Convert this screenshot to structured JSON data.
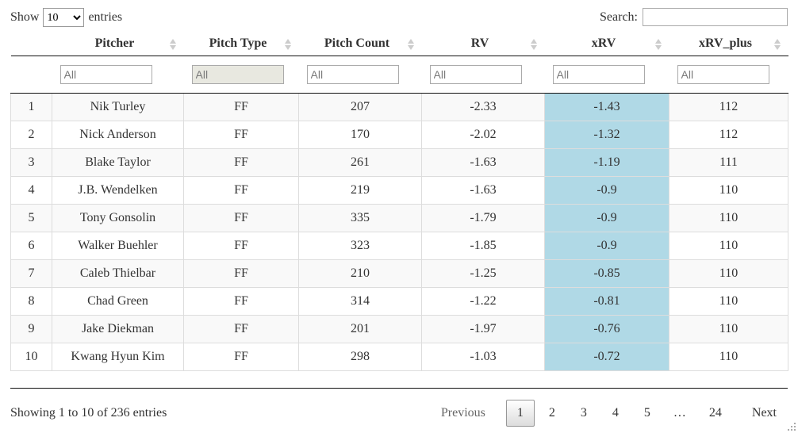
{
  "controls": {
    "show_label": "Show",
    "entries_selected": "10",
    "entries_label": "entries",
    "search_label": "Search:",
    "search_value": ""
  },
  "table": {
    "columns": [
      "Pitcher",
      "Pitch Type",
      "Pitch Count",
      "RV",
      "xRV",
      "xRV_plus"
    ],
    "filters": {
      "placeholder": "All"
    },
    "rows": [
      {
        "num": "1",
        "pitcher": "Nik Turley",
        "pitch_type": "FF",
        "pitch_count": "207",
        "rv": "-2.33",
        "xrv": "-1.43",
        "xrv_plus": "112"
      },
      {
        "num": "2",
        "pitcher": "Nick Anderson",
        "pitch_type": "FF",
        "pitch_count": "170",
        "rv": "-2.02",
        "xrv": "-1.32",
        "xrv_plus": "112"
      },
      {
        "num": "3",
        "pitcher": "Blake Taylor",
        "pitch_type": "FF",
        "pitch_count": "261",
        "rv": "-1.63",
        "xrv": "-1.19",
        "xrv_plus": "111"
      },
      {
        "num": "4",
        "pitcher": "J.B. Wendelken",
        "pitch_type": "FF",
        "pitch_count": "219",
        "rv": "-1.63",
        "xrv": "-0.9",
        "xrv_plus": "110"
      },
      {
        "num": "5",
        "pitcher": "Tony Gonsolin",
        "pitch_type": "FF",
        "pitch_count": "335",
        "rv": "-1.79",
        "xrv": "-0.9",
        "xrv_plus": "110"
      },
      {
        "num": "6",
        "pitcher": "Walker Buehler",
        "pitch_type": "FF",
        "pitch_count": "323",
        "rv": "-1.85",
        "xrv": "-0.9",
        "xrv_plus": "110"
      },
      {
        "num": "7",
        "pitcher": "Caleb Thielbar",
        "pitch_type": "FF",
        "pitch_count": "210",
        "rv": "-1.25",
        "xrv": "-0.85",
        "xrv_plus": "110"
      },
      {
        "num": "8",
        "pitcher": "Chad Green",
        "pitch_type": "FF",
        "pitch_count": "314",
        "rv": "-1.22",
        "xrv": "-0.81",
        "xrv_plus": "110"
      },
      {
        "num": "9",
        "pitcher": "Jake Diekman",
        "pitch_type": "FF",
        "pitch_count": "201",
        "rv": "-1.97",
        "xrv": "-0.76",
        "xrv_plus": "110"
      },
      {
        "num": "10",
        "pitcher": "Kwang Hyun Kim",
        "pitch_type": "FF",
        "pitch_count": "298",
        "rv": "-1.03",
        "xrv": "-0.72",
        "xrv_plus": "110"
      }
    ]
  },
  "footer": {
    "info": "Showing 1 to 10 of 236 entries",
    "pagination": {
      "previous": "Previous",
      "pages": [
        "1",
        "2",
        "3",
        "4",
        "5",
        "…",
        "24"
      ],
      "active_page": "1",
      "next": "Next"
    }
  },
  "colors": {
    "xrv_highlight": "#b0d9e6",
    "stripe": "#f9f9f9",
    "header_border": "#111111",
    "cell_border": "#dddddd",
    "active_page_border": "#979797",
    "sort_icon": "#cccccc"
  }
}
